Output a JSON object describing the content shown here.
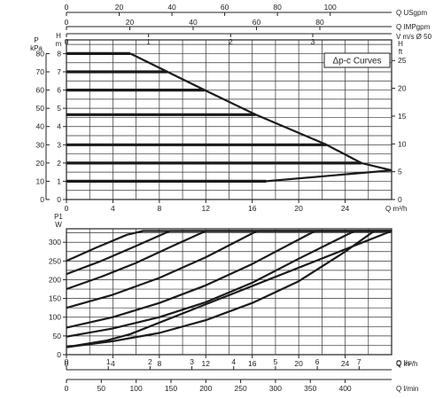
{
  "chart_data": [
    {
      "type": "line",
      "title": "",
      "legend_label": "Δp-c Curves",
      "legend_placement": "top-right",
      "grid": true,
      "x_axes": {
        "bottom": {
          "label": "Q m³/h",
          "range": [
            0,
            28
          ],
          "ticks": [
            0,
            4,
            8,
            12,
            16,
            20,
            24
          ]
        },
        "top_usgpm": {
          "label": "Q USgpm",
          "ticks": [
            0,
            20,
            40,
            60,
            80,
            100
          ]
        },
        "top_impgpm": {
          "label": "Q IMPgpm",
          "ticks": [
            0,
            20,
            40,
            60,
            80
          ]
        },
        "top_velocity": {
          "label": "V m/s Ø 50",
          "ticks": [
            0,
            1,
            2,
            3
          ]
        }
      },
      "y_axes": {
        "left_p": {
          "label_top": "P",
          "label_unit": "kPa",
          "range": [
            0,
            80
          ],
          "ticks": [
            0,
            10,
            20,
            30,
            40,
            50,
            60,
            70,
            80
          ]
        },
        "left_h": {
          "label_top": "H",
          "label_unit": "m",
          "range": [
            0,
            8
          ],
          "ticks": [
            0,
            1,
            2,
            3,
            4,
            5,
            6,
            7,
            8
          ]
        },
        "right_h": {
          "label_top": "H",
          "label_unit": "ft",
          "ticks": [
            0,
            5,
            10,
            15,
            20,
            25
          ]
        }
      },
      "series": [
        {
          "x": [
            0,
            5.5
          ],
          "y": [
            8,
            8
          ]
        },
        {
          "x": [
            0,
            8.7
          ],
          "y": [
            7,
            7
          ]
        },
        {
          "x": [
            0,
            11.9
          ],
          "y": [
            6,
            6
          ]
        },
        {
          "x": [
            0,
            16.3
          ],
          "y": [
            4.65,
            4.65
          ]
        },
        {
          "x": [
            0,
            22.4
          ],
          "y": [
            3,
            3
          ]
        },
        {
          "x": [
            0,
            25.4
          ],
          "y": [
            2,
            2
          ]
        },
        {
          "x": [
            0,
            17.2
          ],
          "y": [
            1,
            1
          ]
        },
        {
          "x": [
            5.5,
            8.7,
            11.9,
            16.3,
            22.4,
            25.4,
            28
          ],
          "y": [
            8,
            7,
            6,
            4.65,
            3,
            2,
            1.6
          ]
        },
        {
          "x": [
            17.2,
            28
          ],
          "y": [
            1,
            1.6
          ]
        }
      ]
    },
    {
      "type": "line",
      "title": "",
      "grid": true,
      "x_axes": {
        "bottom_m3h": {
          "label": "Q m³/h",
          "range": [
            0,
            28
          ],
          "ticks": [
            0,
            4,
            8,
            12,
            16,
            20,
            24
          ]
        },
        "bottom_ls": {
          "label": "Q l/s",
          "ticks": [
            0,
            1,
            2,
            3,
            4,
            5,
            6,
            7
          ]
        },
        "bottom_lmin": {
          "label": "Q l/min",
          "ticks": [
            0,
            50,
            100,
            150,
            200,
            250,
            300,
            350,
            400
          ]
        }
      },
      "y_axes": {
        "left_p1": {
          "label_top": "P1",
          "label_unit": "W",
          "range": [
            0,
            330
          ],
          "ticks": [
            0,
            50,
            100,
            150,
            200,
            250,
            300
          ]
        }
      },
      "series": [
        {
          "x": [
            0,
            3.5,
            5.5,
            28
          ],
          "y": [
            20,
            38,
            55,
            330
          ]
        },
        {
          "x": [
            0,
            4,
            8,
            12,
            16,
            20,
            24,
            26.5,
            28
          ],
          "y": [
            20,
            36,
            58,
            92,
            138,
            196,
            275,
            330,
            330
          ]
        },
        {
          "x": [
            0,
            4,
            8,
            12,
            16,
            20,
            24.8,
            28
          ],
          "y": [
            48,
            70,
            100,
            140,
            192,
            256,
            330,
            330
          ]
        },
        {
          "x": [
            0,
            4,
            8,
            12,
            16,
            21.4,
            28
          ],
          "y": [
            72,
            100,
            138,
            185,
            242,
            330,
            330
          ]
        },
        {
          "x": [
            0,
            4,
            8,
            12,
            16.4,
            28
          ],
          "y": [
            125,
            160,
            205,
            260,
            330,
            330
          ]
        },
        {
          "x": [
            0,
            3,
            6,
            9,
            12,
            28
          ],
          "y": [
            175,
            208,
            245,
            288,
            330,
            330
          ]
        },
        {
          "x": [
            0,
            3,
            6,
            8.9,
            28
          ],
          "y": [
            215,
            250,
            290,
            330,
            330
          ]
        },
        {
          "x": [
            0,
            2.5,
            5.2,
            6.6,
            28
          ],
          "y": [
            250,
            285,
            320,
            330,
            330
          ]
        }
      ]
    }
  ]
}
